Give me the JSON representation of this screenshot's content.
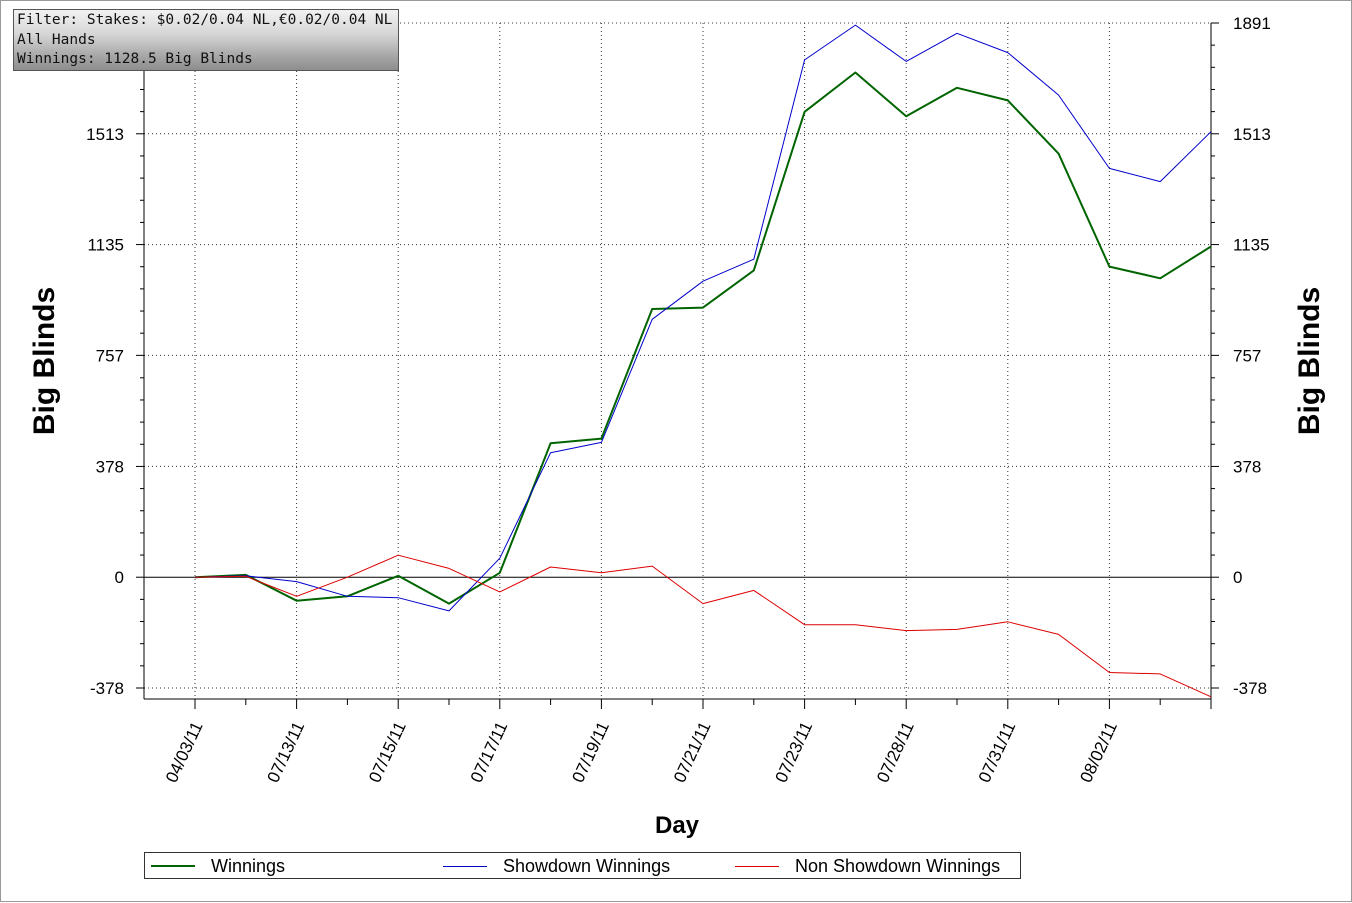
{
  "filter_box": {
    "line1": "Filter: Stakes: $0.02/0.04 NL,€0.02/0.04 NL",
    "line2": "All Hands",
    "line3": "Winnings: 1128.5 Big Blinds"
  },
  "legend": {
    "items": [
      {
        "label": "Winnings",
        "color": "#006400"
      },
      {
        "label": "Showdown Winnings",
        "color": "#0000cc"
      },
      {
        "label": "Non Showdown Winnings",
        "color": "#dd0000"
      }
    ]
  },
  "chart_data": {
    "type": "line",
    "xlabel": "Day",
    "ylabel": "Big Blinds",
    "ylabel_right": "Big Blinds",
    "ylim": [
      -378,
      1891
    ],
    "y_ticks": [
      -378,
      0,
      378,
      757,
      1135,
      1513,
      1891
    ],
    "y_tick_labels": [
      "-378",
      "0",
      "378",
      "757",
      "1135",
      "1513",
      "1891"
    ],
    "x_tick_labels": [
      "04/03/11",
      "07/13/11",
      "07/15/11",
      "07/17/11",
      "07/19/11",
      "07/21/11",
      "07/23/11",
      "07/28/11",
      "07/31/11",
      "08/02/11"
    ],
    "x_label_every": 2,
    "grid": true,
    "series": [
      {
        "name": "Winnings",
        "color": "#006400",
        "width": 2,
        "values": [
          0,
          8,
          -80,
          -65,
          5,
          -90,
          15,
          457,
          473,
          915,
          920,
          1047,
          1588,
          1722,
          1573,
          1670,
          1627,
          1445,
          1060,
          1020,
          1128.5
        ]
      },
      {
        "name": "Showdown Winnings",
        "color": "#0000cc",
        "width": 1,
        "values": [
          0,
          5,
          -15,
          -65,
          -70,
          -115,
          65,
          425,
          460,
          880,
          1010,
          1085,
          1765,
          1884,
          1760,
          1856,
          1790,
          1645,
          1395,
          1350,
          1520
        ]
      },
      {
        "name": "Non Showdown Winnings",
        "color": "#dd0000",
        "width": 1,
        "values": [
          0,
          3,
          -65,
          0,
          75,
          30,
          -50,
          35,
          15,
          38,
          -90,
          -45,
          -162,
          -162,
          -182,
          -178,
          -152,
          -195,
          -325,
          -330,
          -408
        ]
      }
    ]
  }
}
